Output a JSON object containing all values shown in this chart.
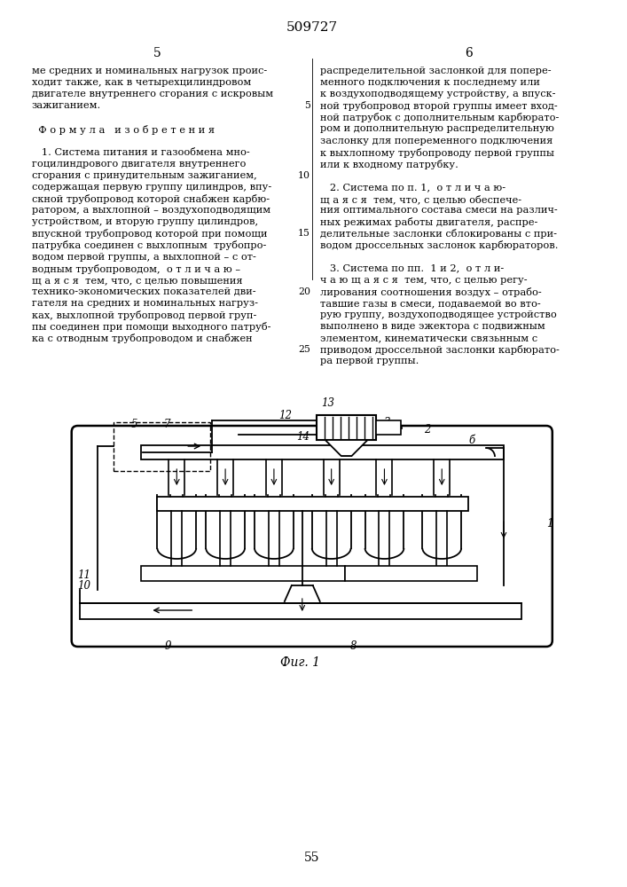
{
  "patent_number": "509727",
  "page_left_num": "5",
  "page_right_num": "6",
  "page_bottom_num": "55",
  "left_col": [
    "ме средних и номинальных нагрузок проис-",
    "ходит также, как в четырехцилиндровом",
    "двигателе внутреннего сгорания с искровым",
    "зажиганием.",
    "",
    "  Ф о р м у л а   и з о б р е т е н и я",
    "",
    "   1. Система питания и газообмена мно-",
    "гоцилиндрового двигателя внутреннего",
    "сгорания с принудительным зажиганием,",
    "содержащая первую группу цилиндров, впу-",
    "скной трубопровод которой снабжен карбю-",
    "ратором, а выхлопной – воздухоподводящим",
    "устройством, и вторую группу цилиндров,",
    "впускной трубопровод которой при помощи",
    "патрубка соединен с выхлопным  трубопро-",
    "водом первой группы, а выхлопной – с от-",
    "водным трубопроводом,  о т л и ч а ю –",
    "щ а я с я  тем, что, с целью повышения",
    "технико-экономических показателей дви-",
    "гателя на средних и номинальных нагруз-",
    "ках, выхлопной трубопровод первой груп-",
    "пы соединен при помощи выходного патруб-",
    "ка с отводным трубопроводом и снабжен"
  ],
  "right_col": [
    "распределительной заслонкой для попере-",
    "менного подключения к последнему или",
    "к воздухоподводящему устройству, а впуск-",
    "ной трубопровод второй группы имеет вход-",
    "ной патрубок с дополнительным карбюрато-",
    "ром и дополнительную распределительную",
    "заслонку для попеременного подключения",
    "к выхлопному трубопроводу первой группы",
    "или к входному патрубку.",
    "",
    "   2. Система по п. 1,  о т л и ч а ю-",
    "щ а я с я  тем, что, с целью обеспече-",
    "ния оптимального состава смеси на различ-",
    "ных режимах работы двигателя, распре-",
    "делительные заслонки сблокированы с при-",
    "водом дроссельных заслонок карбюраторов.",
    "",
    "   3. Система по пп.  1 и 2,  о т л и-",
    "ч а ю щ а я с я  тем, что, с целью регу-",
    "лирования соотношения воздух – отрабо-",
    "тавшие газы в смеси, подаваемой во вто-",
    "рую группу, воздухоподводящее устройство",
    "выполнено в виде эжектора с подвижным",
    "элементом, кинематически связьнным с",
    "приводом дроссельной заслонки карбюрато-",
    "ра первой группы."
  ],
  "fig_label": "Фиг. 1",
  "bg": "#ffffff"
}
